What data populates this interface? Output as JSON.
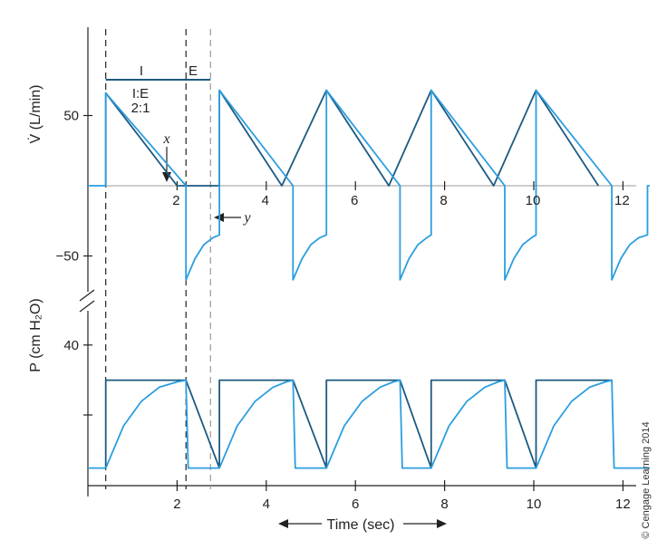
{
  "chart_data": [
    {
      "panel": "flow",
      "type": "line",
      "ylabel": "V̇ (L/min)",
      "yticks": [
        50,
        -50
      ],
      "xticks": [
        2,
        4,
        6,
        8,
        10,
        12
      ],
      "xlim": [
        0,
        12.6
      ],
      "ylim": [
        -70,
        110
      ],
      "annotations": {
        "phase_inspiration": "I",
        "phase_expiration": "E",
        "ratio_label": "I:E",
        "ratio_value": "2:1",
        "marker_x": "x",
        "marker_y": "y"
      },
      "series": [
        {
          "color": "#1d5a80",
          "points": [
            [
              0.4,
              0
            ],
            [
              0.4,
              66
            ],
            [
              2.0,
              0
            ],
            [
              2.95,
              0
            ],
            [
              2.95,
              68
            ],
            [
              4.35,
              0
            ],
            [
              5.35,
              68
            ],
            [
              6.75,
              0
            ],
            [
              7.7,
              68
            ],
            [
              9.1,
              0
            ],
            [
              10.05,
              68
            ],
            [
              11.45,
              0
            ]
          ]
        },
        {
          "color": "#2b9ee0",
          "points": [
            [
              0,
              0
            ],
            [
              0.4,
              0
            ],
            [
              0.4,
              66
            ],
            [
              2.2,
              0
            ],
            [
              2.2,
              0
            ],
            [
              2.2,
              -67
            ],
            [
              2.4,
              -52
            ],
            [
              2.6,
              -42
            ],
            [
              2.8,
              -37
            ],
            [
              2.95,
              -35
            ],
            [
              2.95,
              68
            ],
            [
              4.6,
              0
            ],
            [
              4.6,
              0
            ],
            [
              4.6,
              -67
            ],
            [
              4.8,
              -52
            ],
            [
              5.0,
              -42
            ],
            [
              5.2,
              -37
            ],
            [
              5.35,
              -35
            ],
            [
              5.35,
              68
            ],
            [
              7.0,
              0
            ],
            [
              7.0,
              0
            ],
            [
              7.0,
              -67
            ],
            [
              7.2,
              -52
            ],
            [
              7.4,
              -42
            ],
            [
              7.6,
              -37
            ],
            [
              7.7,
              -35
            ],
            [
              7.7,
              68
            ],
            [
              9.35,
              0
            ],
            [
              9.35,
              0
            ],
            [
              9.35,
              -67
            ],
            [
              9.55,
              -52
            ],
            [
              9.75,
              -42
            ],
            [
              9.95,
              -37
            ],
            [
              10.05,
              -35
            ],
            [
              10.05,
              68
            ],
            [
              11.75,
              0
            ],
            [
              11.75,
              0
            ],
            [
              11.75,
              -67
            ],
            [
              11.95,
              -52
            ],
            [
              12.15,
              -42
            ],
            [
              12.35,
              -37
            ],
            [
              12.55,
              -35
            ],
            [
              12.55,
              0
            ],
            [
              12.6,
              0
            ]
          ]
        }
      ]
    },
    {
      "panel": "pressure",
      "type": "line",
      "ylabel": "P (cm H₂O)",
      "yticks": [
        40
      ],
      "xticks": [
        2,
        4,
        6,
        8,
        10,
        12
      ],
      "xlabel": "Time (sec)",
      "xlim": [
        0,
        12.6
      ],
      "ylim": [
        0,
        50
      ],
      "series": [
        {
          "color": "#1d5a80",
          "points": [
            [
              0.4,
              5
            ],
            [
              0.4,
              30
            ],
            [
              2.2,
              30
            ],
            [
              2.95,
              5
            ],
            [
              2.95,
              30
            ],
            [
              4.6,
              30
            ],
            [
              5.35,
              5
            ],
            [
              5.35,
              30
            ],
            [
              7.0,
              30
            ],
            [
              7.7,
              5
            ],
            [
              7.7,
              30
            ],
            [
              9.35,
              30
            ],
            [
              10.05,
              5
            ],
            [
              10.05,
              30
            ],
            [
              11.75,
              30
            ]
          ]
        },
        {
          "color": "#2b9ee0",
          "points": [
            [
              0,
              5
            ],
            [
              0.4,
              5
            ],
            [
              0.4,
              5
            ],
            [
              0.8,
              17
            ],
            [
              1.2,
              24
            ],
            [
              1.6,
              28
            ],
            [
              2.0,
              29.5
            ],
            [
              2.2,
              30
            ],
            [
              2.2,
              30
            ],
            [
              2.25,
              5
            ],
            [
              2.95,
              5
            ],
            [
              2.95,
              5
            ],
            [
              3.35,
              17
            ],
            [
              3.75,
              24
            ],
            [
              4.15,
              28
            ],
            [
              4.45,
              29.5
            ],
            [
              4.6,
              30
            ],
            [
              4.6,
              30
            ],
            [
              4.65,
              5
            ],
            [
              5.35,
              5
            ],
            [
              5.35,
              5
            ],
            [
              5.75,
              17
            ],
            [
              6.15,
              24
            ],
            [
              6.55,
              28
            ],
            [
              6.85,
              29.5
            ],
            [
              7.0,
              30
            ],
            [
              7.0,
              30
            ],
            [
              7.05,
              5
            ],
            [
              7.7,
              5
            ],
            [
              7.7,
              5
            ],
            [
              8.1,
              17
            ],
            [
              8.5,
              24
            ],
            [
              8.9,
              28
            ],
            [
              9.2,
              29.5
            ],
            [
              9.35,
              30
            ],
            [
              9.35,
              30
            ],
            [
              9.4,
              5
            ],
            [
              10.05,
              5
            ],
            [
              10.05,
              5
            ],
            [
              10.45,
              17
            ],
            [
              10.85,
              24
            ],
            [
              11.25,
              28
            ],
            [
              11.6,
              29.5
            ],
            [
              11.75,
              30
            ],
            [
              11.75,
              30
            ],
            [
              11.8,
              5
            ],
            [
              12.6,
              5
            ]
          ]
        }
      ]
    }
  ],
  "copyright": "© Cengage Learning 2014"
}
